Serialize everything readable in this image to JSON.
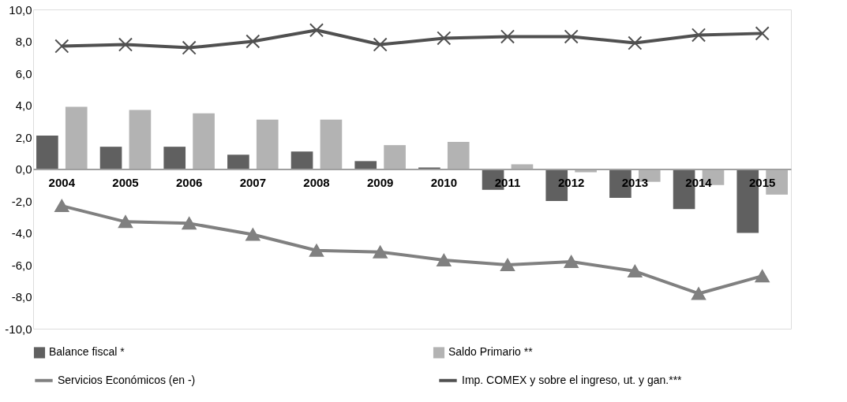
{
  "chart_data": {
    "type": "bar",
    "categories": [
      "2004",
      "2005",
      "2006",
      "2007",
      "2008",
      "2009",
      "2010",
      "2011",
      "2012",
      "2013",
      "2014",
      "2015"
    ],
    "series": [
      {
        "name": "Balance fiscal *",
        "color": "#606060",
        "values": [
          2.1,
          1.4,
          1.4,
          0.9,
          1.1,
          0.5,
          0.1,
          -1.3,
          -2.0,
          -1.8,
          -2.5,
          -4.0
        ]
      },
      {
        "name": "Saldo Primario **",
        "color": "#b3b3b3",
        "values": [
          3.9,
          3.7,
          3.5,
          3.1,
          3.1,
          1.5,
          1.7,
          0.3,
          -0.2,
          -0.8,
          -1.0,
          -1.6
        ]
      },
      {
        "name": "Servicios Económicos (en -)",
        "type": "line",
        "marker": "triangle",
        "color": "#808080",
        "values": [
          -2.3,
          -3.3,
          -3.4,
          -4.1,
          -5.1,
          -5.2,
          -5.7,
          -6.0,
          -5.8,
          -6.4,
          -7.8,
          -6.7
        ]
      },
      {
        "name": "Imp. COMEX  y sobre el ingreso, ut. y gan.***",
        "type": "line",
        "marker": "cross",
        "color": "#505050",
        "values": [
          7.7,
          7.8,
          7.6,
          8.0,
          8.7,
          7.8,
          8.2,
          8.3,
          8.3,
          7.9,
          8.4,
          8.5
        ]
      }
    ],
    "ylim": [
      -10,
      10
    ],
    "yticks": [
      {
        "value": -10,
        "label": "-10,0"
      },
      {
        "value": -8,
        "label": "-8,0"
      },
      {
        "value": -6,
        "label": "-6,0"
      },
      {
        "value": -4,
        "label": "-4,0"
      },
      {
        "value": -2,
        "label": "-2,0"
      },
      {
        "value": 0,
        "label": "0,0"
      },
      {
        "value": 2,
        "label": "2,0"
      },
      {
        "value": 4,
        "label": "4,0"
      },
      {
        "value": 6,
        "label": "6,0"
      },
      {
        "value": 8,
        "label": "8,0"
      },
      {
        "value": 10,
        "label": "10,0"
      }
    ],
    "grid": false,
    "legend": "bottom"
  }
}
